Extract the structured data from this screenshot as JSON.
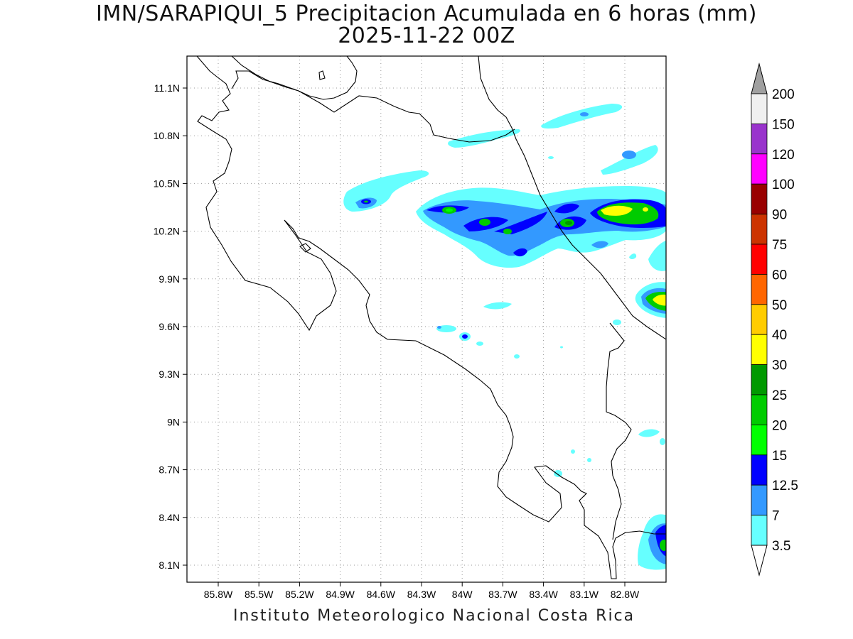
{
  "title_line1": "IMN/SARAPIQUI_5 Precipitacion Acumulada en 6 horas (mm)",
  "title_line2": "2025-11-22 00Z",
  "footer": "Instituto Meteorologico Nacional Costa Rica",
  "lat_labels": [
    "11.1N",
    "10.8N",
    "10.5N",
    "10.2N",
    "9.9N",
    "9.6N",
    "9.3N",
    "9N",
    "8.7N",
    "8.4N",
    "8.1N"
  ],
  "lon_labels": [
    "85.8W",
    "85.5W",
    "85.2W",
    "84.9W",
    "84.6W",
    "84.3W",
    "84W",
    "83.7W",
    "83.4W",
    "83.1W",
    "82.8W"
  ],
  "colorbar": {
    "labels": [
      "200",
      "150",
      "120",
      "100",
      "90",
      "75",
      "60",
      "50",
      "40",
      "30",
      "25",
      "20",
      "15",
      "12.5",
      "7",
      "3.5"
    ],
    "colors": [
      "#f0f0f0",
      "#9933cc",
      "#ff00ff",
      "#990000",
      "#cc3300",
      "#ff0000",
      "#ff6600",
      "#ffcc00",
      "#ffff00",
      "#009900",
      "#00cc00",
      "#00ff00",
      "#0000ff",
      "#3399ff",
      "#66ffff"
    ],
    "top_arrow_color": "#a0a0a0",
    "bottom_arrow_color": "#ffffff"
  }
}
